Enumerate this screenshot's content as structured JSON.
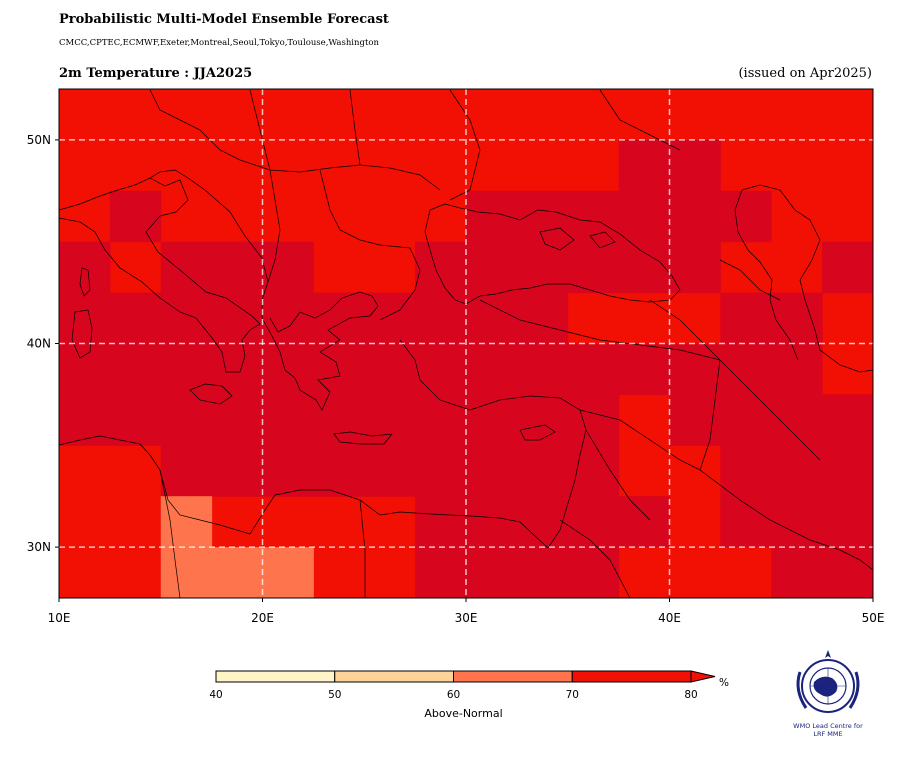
{
  "header": {
    "title": "Probabilistic Multi-Model Ensemble Forecast",
    "models": "CMCC,CPTEC,ECMWF,Exeter,Montreal,Seoul,Tokyo,Toulouse,Washington",
    "variable": "2m Temperature : JJA2025",
    "issued": "(issued on Apr2025)"
  },
  "map": {
    "lon_range": [
      10,
      50
    ],
    "lat_range": [
      27.5,
      52.5
    ],
    "lon_ticks": [
      {
        "v": 10,
        "label": "10E"
      },
      {
        "v": 20,
        "label": "20E"
      },
      {
        "v": 30,
        "label": "30E"
      },
      {
        "v": 40,
        "label": "40E"
      },
      {
        "v": 50,
        "label": "50E"
      }
    ],
    "lat_ticks": [
      {
        "v": 30,
        "label": "30N"
      },
      {
        "v": 40,
        "label": "40N"
      },
      {
        "v": 50,
        "label": "50N"
      }
    ],
    "grid": "dashed white",
    "cell_size_deg": 2.5,
    "colors": {
      "c75": "#f20f04",
      "c78": "#d7051e",
      "c65": "#fe744c"
    },
    "base_category": "c75",
    "cells": [
      {
        "lon": [
          12.5,
          15
        ],
        "lat": [
          45,
          47.5
        ],
        "cat": "c78"
      },
      {
        "lon": [
          10,
          12.5
        ],
        "lat": [
          42.5,
          45
        ],
        "cat": "c78"
      },
      {
        "lon": [
          15,
          22.5
        ],
        "lat": [
          42.5,
          45
        ],
        "cat": "c78"
      },
      {
        "lon": [
          10,
          25
        ],
        "lat": [
          40,
          42.5
        ],
        "cat": "c78"
      },
      {
        "lon": [
          25,
          27.5
        ],
        "lat": [
          40,
          42.5
        ],
        "cat": "c78"
      },
      {
        "lon": [
          27.5,
          32.5
        ],
        "lat": [
          42.5,
          45
        ],
        "cat": "c78"
      },
      {
        "lon": [
          30,
          37.5
        ],
        "lat": [
          45,
          47.5
        ],
        "cat": "c78"
      },
      {
        "lon": [
          37.5,
          42.5
        ],
        "lat": [
          45,
          50
        ],
        "cat": "c78"
      },
      {
        "lon": [
          42.5,
          45
        ],
        "lat": [
          45,
          47.5
        ],
        "cat": "c78"
      },
      {
        "lon": [
          32.5,
          42.5
        ],
        "lat": [
          42.5,
          45
        ],
        "cat": "c78"
      },
      {
        "lon": [
          27.5,
          35
        ],
        "lat": [
          40,
          42.5
        ],
        "cat": "c78"
      },
      {
        "lon": [
          42.5,
          47.5
        ],
        "lat": [
          40,
          42.5
        ],
        "cat": "c78"
      },
      {
        "lon": [
          47.5,
          50
        ],
        "lat": [
          42.5,
          45
        ],
        "cat": "c78"
      },
      {
        "lon": [
          10,
          47.5
        ],
        "lat": [
          37.5,
          40
        ],
        "cat": "c78"
      },
      {
        "lon": [
          10,
          37.5
        ],
        "lat": [
          35,
          37.5
        ],
        "cat": "c78"
      },
      {
        "lon": [
          40,
          50
        ],
        "lat": [
          35,
          37.5
        ],
        "cat": "c78"
      },
      {
        "lon": [
          15,
          27.5
        ],
        "lat": [
          32.5,
          35
        ],
        "cat": "c78"
      },
      {
        "lon": [
          27.5,
          37.5
        ],
        "lat": [
          32.5,
          35
        ],
        "cat": "c78"
      },
      {
        "lon": [
          42.5,
          50
        ],
        "lat": [
          32.5,
          35
        ],
        "cat": "c78"
      },
      {
        "lon": [
          27.5,
          37.5
        ],
        "lat": [
          30,
          32.5
        ],
        "cat": "c78"
      },
      {
        "lon": [
          37.5,
          40
        ],
        "lat": [
          30,
          32.5
        ],
        "cat": "c78"
      },
      {
        "lon": [
          42.5,
          50
        ],
        "lat": [
          30,
          32.5
        ],
        "cat": "c78"
      },
      {
        "lon": [
          27.5,
          37.5
        ],
        "lat": [
          27.5,
          30
        ],
        "cat": "c78"
      },
      {
        "lon": [
          45,
          50
        ],
        "lat": [
          27.5,
          30
        ],
        "cat": "c78"
      },
      {
        "lon": [
          15,
          17.5
        ],
        "lat": [
          30,
          32.5
        ],
        "cat": "c65"
      },
      {
        "lon": [
          15,
          22.5
        ],
        "lat": [
          27.5,
          30
        ],
        "cat": "c65"
      }
    ]
  },
  "colorbar": {
    "ticks": [
      "40",
      "50",
      "60",
      "70",
      "80"
    ],
    "colors": [
      "#fff4c8",
      "#fed399",
      "#fe744c",
      "#f20f04"
    ],
    "unit": "%",
    "label": "Above-Normal"
  },
  "logo": {
    "line1": "WMO Lead Centre for",
    "line2": "LRF MME"
  }
}
